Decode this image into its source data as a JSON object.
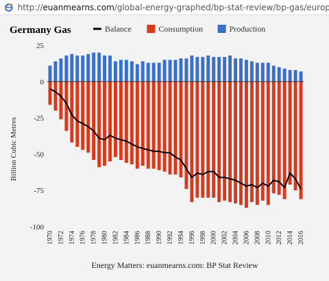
{
  "browser": {
    "url_prefix": "http://",
    "url_host": "euanmearns.com",
    "url_path": "/global-energy-graphed/bp-stat-review/bp-gas/europe/",
    "favicon": "ie-icon"
  },
  "chart_data": {
    "type": "bar",
    "title": "Germany Gas",
    "ylabel": "Billion Cubic Metres",
    "xlabel": "",
    "footer": "Energy Matters: euanmearns.com: BP Stat Review",
    "ylim": [
      -100,
      25
    ],
    "yticks": [
      25,
      0,
      -25,
      -50,
      -75,
      -100
    ],
    "legend_position": "top",
    "grid": false,
    "years": [
      1970,
      1971,
      1972,
      1973,
      1974,
      1975,
      1976,
      1977,
      1978,
      1979,
      1980,
      1981,
      1982,
      1983,
      1984,
      1985,
      1986,
      1987,
      1988,
      1989,
      1990,
      1991,
      1992,
      1993,
      1994,
      1995,
      1996,
      1997,
      1998,
      1999,
      2000,
      2001,
      2002,
      2003,
      2004,
      2005,
      2006,
      2007,
      2008,
      2009,
      2010,
      2011,
      2012,
      2013,
      2014,
      2015,
      2016
    ],
    "xtick_labels": [
      "1970",
      "1972",
      "1974",
      "1976",
      "1978",
      "1980",
      "1982",
      "1984",
      "1986",
      "1988",
      "1990",
      "1992",
      "1994",
      "1996",
      "1998",
      "2000",
      "2002",
      "2004",
      "2006",
      "2008",
      "2010",
      "2012",
      "2014",
      "2016"
    ],
    "series": [
      {
        "name": "Balance",
        "kind": "line",
        "color": "#000000",
        "values": [
          -5,
          -7,
          -10,
          -15,
          -23,
          -27,
          -29,
          -31,
          -34,
          -39,
          -40,
          -37,
          -39,
          -40,
          -41,
          -43,
          -45,
          -46,
          -47,
          -48,
          -48,
          -49,
          -49,
          -52,
          -54,
          -60,
          -66,
          -63,
          -64,
          -62,
          -62,
          -66,
          -66,
          -67,
          -68,
          -70,
          -72,
          -71,
          -73,
          -70,
          -72,
          -68,
          -69,
          -73,
          -63,
          -67,
          -74
        ]
      },
      {
        "name": "Consumption",
        "kind": "bar",
        "color": "#d9391c",
        "values": [
          -16,
          -20,
          -26,
          -34,
          -42,
          -45,
          -47,
          -49,
          -54,
          -59,
          -58,
          -55,
          -52,
          -54,
          -56,
          -57,
          -60,
          -58,
          -60,
          -60,
          -61,
          -62,
          -64,
          -64,
          -66,
          -74,
          -83,
          -80,
          -80,
          -80,
          -80,
          -83,
          -82,
          -83,
          -84,
          -85,
          -87,
          -83,
          -85,
          -82,
          -85,
          -77,
          -78,
          -81,
          -71,
          -75,
          -81
        ]
      },
      {
        "name": "Production",
        "kind": "bar",
        "color": "#3b6fcc",
        "values": [
          11,
          14,
          16,
          18,
          19,
          18,
          18,
          19,
          20,
          20,
          18,
          18,
          14,
          15,
          15,
          14,
          12,
          14,
          13,
          13,
          13,
          15,
          15,
          15,
          16,
          16,
          18,
          17,
          17,
          18,
          17,
          17,
          17,
          18,
          16,
          16,
          15,
          14,
          13,
          13,
          13,
          11,
          10,
          9,
          8,
          8,
          7
        ]
      }
    ]
  }
}
